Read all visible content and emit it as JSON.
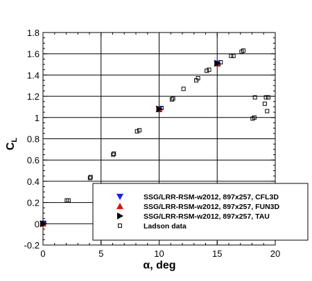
{
  "chart_data": {
    "type": "scatter",
    "xlabel": "α, deg",
    "ylabel_main": "C",
    "ylabel_sub": "L",
    "xlim": [
      0,
      20
    ],
    "ylim": [
      -0.2,
      1.8
    ],
    "xticks": [
      0,
      5,
      10,
      15,
      20
    ],
    "yticks": [
      -0.2,
      0,
      0.2,
      0.4,
      0.6,
      0.8,
      1,
      1.2,
      1.4,
      1.6,
      1.8
    ],
    "x_tick_labels": [
      "0",
      "5",
      "10",
      "15",
      "20"
    ],
    "y_tick_labels": [
      "-0.2",
      "0",
      "0.2",
      "0.4",
      "0.6",
      "0.8",
      "1",
      "1.2",
      "1.4",
      "1.6",
      "1.8"
    ],
    "grid": true,
    "legend_position": "bottom-right",
    "series": [
      {
        "name": "SSG/LRR-RSM-w2012, 897x257, CFL3D",
        "marker": "triangle-down",
        "color": "#1a1aff",
        "x": [
          0,
          10,
          15
        ],
        "y": [
          0.0,
          1.08,
          1.51
        ]
      },
      {
        "name": "SSG/LRR-RSM-w2012, 897x257, FUN3D",
        "marker": "triangle-up",
        "color": "#e01010",
        "x": [
          0,
          10,
          15
        ],
        "y": [
          0.0,
          1.08,
          1.51
        ]
      },
      {
        "name": "SSG/LRR-RSM-w2012, 897x257, TAU",
        "marker": "triangle-right",
        "color": "#000000",
        "x": [
          0,
          10,
          15
        ],
        "y": [
          0.0,
          1.08,
          1.51
        ]
      },
      {
        "name": "Ladson data",
        "marker": "square-open",
        "color": "#000000",
        "x": [
          -0.05,
          0.1,
          2.05,
          2.2,
          4.05,
          4.1,
          6.05,
          6.1,
          8.1,
          8.3,
          10.05,
          10.2,
          11.1,
          11.2,
          12.1,
          13.2,
          13.35,
          14.1,
          14.3,
          15.1,
          15.3,
          16.2,
          16.4,
          17.1,
          17.25,
          18.05,
          18.2,
          18.25,
          19.1,
          19.2,
          19.3,
          19.4
        ],
        "y": [
          0.0,
          0.01,
          0.22,
          0.22,
          0.43,
          0.44,
          0.65,
          0.66,
          0.87,
          0.88,
          1.07,
          1.09,
          1.17,
          1.18,
          1.27,
          1.35,
          1.37,
          1.44,
          1.45,
          1.5,
          1.52,
          1.58,
          1.58,
          1.62,
          1.63,
          0.99,
          1.0,
          1.19,
          1.13,
          1.19,
          1.06,
          1.19
        ]
      }
    ]
  }
}
